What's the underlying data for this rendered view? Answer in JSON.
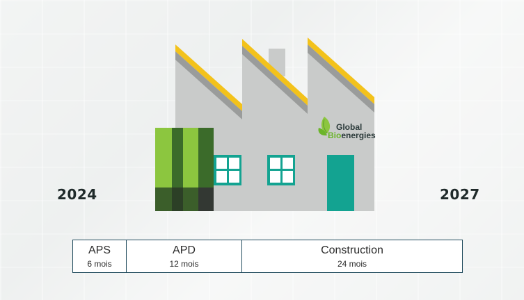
{
  "years": {
    "start": "2024",
    "end": "2027"
  },
  "logo": {
    "word1": "Global",
    "word2_prefix": "Bio",
    "word2_suffix": "energies"
  },
  "phases": [
    {
      "name": "APS",
      "duration": "6 mois"
    },
    {
      "name": "APD",
      "duration": "12 mois"
    },
    {
      "name": "Construction",
      "duration": "24 mois"
    }
  ],
  "colors": {
    "roof_yellow": "#f3c21b",
    "wall_grey": "#c7c9c8",
    "teal": "#13a391",
    "green_light": "#8cc63f",
    "green_dark": "#3a6b2a",
    "timeline_border": "#1f4a5c"
  }
}
